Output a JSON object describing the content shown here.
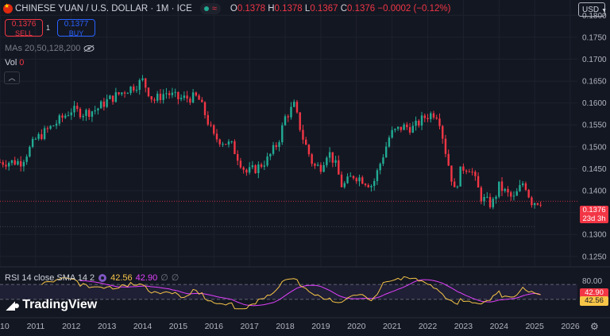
{
  "header": {
    "title": "CHINESE YUAN / U.S. DOLLAR · 1M · ICE",
    "open_label": "O",
    "open": "0.1378",
    "high_label": "H",
    "high": "0.1378",
    "low_label": "L",
    "low": "0.1367",
    "close_label": "C",
    "close": "0.1376",
    "change": "−0.0002 (−0.12%)"
  },
  "trade": {
    "sell_price": "0.1376",
    "sell_label": "SELL",
    "spread": "1",
    "buy_price": "0.1377",
    "buy_label": "BUY"
  },
  "indicators": {
    "mas": "MAs 20,50,128,200",
    "vol_label": "Vol",
    "vol_value": "0",
    "rsi_label": "RSI 14 close SMA 14 2",
    "rsi_value": "42.56",
    "rsi_sma_value": "42.90",
    "na1": "∅",
    "na2": "∅"
  },
  "currency": "USD",
  "price_tag": {
    "price": "0.1376",
    "countdown": "23d 3h"
  },
  "rsi_tags": {
    "sma": "42.90",
    "rsi": "42.56"
  },
  "logo": "TradingView",
  "colors": {
    "up": "#22ab94",
    "down": "#f23645",
    "rsi": "#f7c548",
    "rsi_sma": "#e040fb",
    "background": "#131722"
  },
  "chart_data": {
    "type": "candlestick",
    "title": "CHINESE YUAN / U.S. DOLLAR · 1M · ICE",
    "x_ticks": [
      "10",
      "2011",
      "2012",
      "2013",
      "2014",
      "2015",
      "2016",
      "2017",
      "2018",
      "2019",
      "2020",
      "2021",
      "2022",
      "2023",
      "2024",
      "2025",
      "2026"
    ],
    "y_ticks": [
      "0.1800",
      "0.1750",
      "0.1700",
      "0.1650",
      "0.1600",
      "0.1550",
      "0.1500",
      "0.1450",
      "0.1400",
      "0.1350",
      "0.1300",
      "0.1250"
    ],
    "ylim": [
      0.1226,
      0.1835
    ],
    "x_range": [
      2010.0,
      2026.2
    ],
    "price_anchors": [
      [
        2010.0,
        0.1465
      ],
      [
        2010.6,
        0.1466
      ],
      [
        2011.0,
        0.1517
      ],
      [
        2011.6,
        0.1556
      ],
      [
        2012.0,
        0.1584
      ],
      [
        2012.35,
        0.1577
      ],
      [
        2012.7,
        0.1585
      ],
      [
        2013.0,
        0.1605
      ],
      [
        2013.5,
        0.1628
      ],
      [
        2013.8,
        0.164
      ],
      [
        2014.0,
        0.1651
      ],
      [
        2014.3,
        0.1605
      ],
      [
        2014.65,
        0.1624
      ],
      [
        2015.0,
        0.161
      ],
      [
        2015.55,
        0.1613
      ],
      [
        2015.75,
        0.1575
      ],
      [
        2016.0,
        0.1522
      ],
      [
        2016.5,
        0.1503
      ],
      [
        2016.9,
        0.1441
      ],
      [
        2017.2,
        0.1451
      ],
      [
        2017.5,
        0.1471
      ],
      [
        2017.8,
        0.151
      ],
      [
        2018.0,
        0.1567
      ],
      [
        2018.25,
        0.1594
      ],
      [
        2018.5,
        0.152
      ],
      [
        2018.8,
        0.1455
      ],
      [
        2019.0,
        0.1455
      ],
      [
        2019.2,
        0.1491
      ],
      [
        2019.4,
        0.1462
      ],
      [
        2019.6,
        0.1408
      ],
      [
        2019.9,
        0.1435
      ],
      [
        2020.1,
        0.1429
      ],
      [
        2020.45,
        0.1411
      ],
      [
        2020.7,
        0.147
      ],
      [
        2020.95,
        0.1529
      ],
      [
        2021.3,
        0.1546
      ],
      [
        2021.6,
        0.1543
      ],
      [
        2021.9,
        0.1567
      ],
      [
        2022.15,
        0.1577
      ],
      [
        2022.3,
        0.1573
      ],
      [
        2022.5,
        0.149
      ],
      [
        2022.75,
        0.1399
      ],
      [
        2022.95,
        0.1452
      ],
      [
        2023.2,
        0.1453
      ],
      [
        2023.5,
        0.1384
      ],
      [
        2023.8,
        0.1367
      ],
      [
        2024.0,
        0.141
      ],
      [
        2024.4,
        0.138
      ],
      [
        2024.7,
        0.1422
      ],
      [
        2024.9,
        0.1375
      ],
      [
        2025.2,
        0.1376
      ]
    ],
    "last": {
      "open": 0.1378,
      "high": 0.1378,
      "low": 0.1367,
      "close": 0.1376
    },
    "rsi": {
      "range": [
        0,
        100
      ],
      "visible_ticks": [
        "80.00"
      ],
      "bands": [
        30,
        70
      ],
      "rsi_value": 42.56,
      "sma_value": 42.9
    }
  }
}
